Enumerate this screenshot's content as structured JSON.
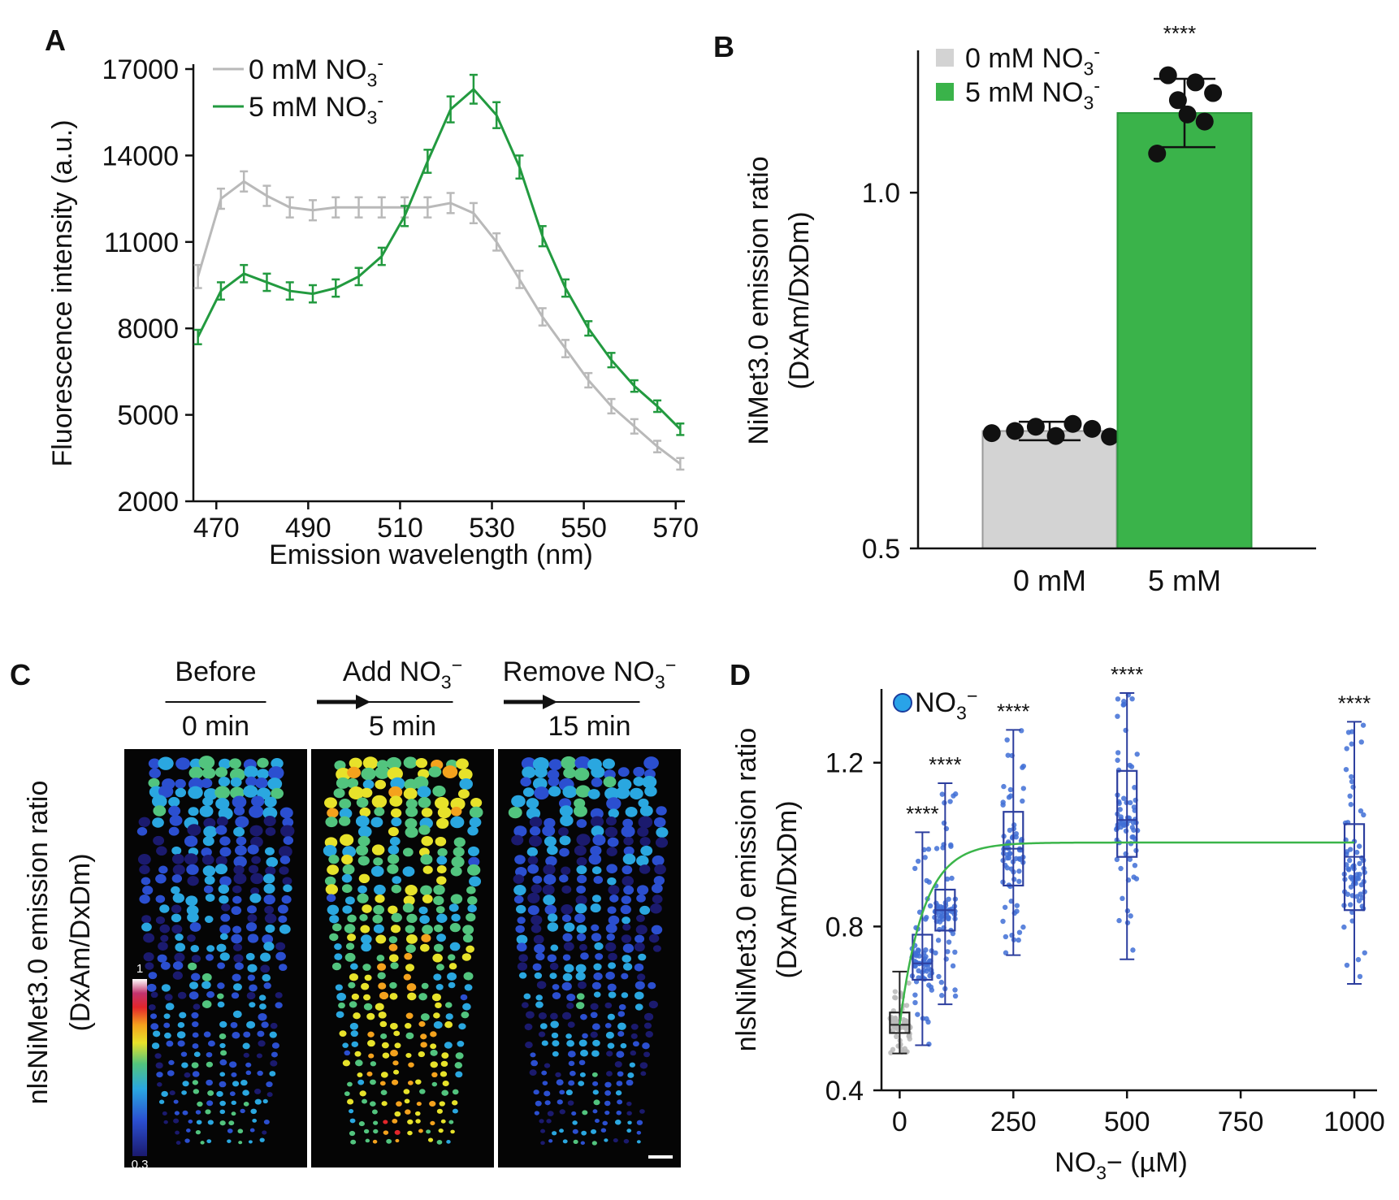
{
  "panels": {
    "A": {
      "letter": "A",
      "chart_data": {
        "type": "line",
        "xlabel": "Emission wavelength (nm)",
        "ylabel": "Fluorescence intensity (a.u.)",
        "xlim": [
          465,
          572
        ],
        "ylim": [
          2000,
          17000
        ],
        "xticks": [
          470,
          490,
          510,
          530,
          550,
          570
        ],
        "yticks": [
          2000,
          5000,
          8000,
          11000,
          14000,
          17000
        ],
        "legend_position": "top-left",
        "x": [
          466,
          471,
          476,
          481,
          486,
          491,
          496,
          501,
          506,
          511,
          516,
          521,
          526,
          531,
          536,
          541,
          546,
          551,
          556,
          561,
          566,
          571
        ],
        "series": [
          {
            "legend_main": "0 mM NO",
            "legend_sub": "3",
            "legend_sup": "-",
            "color": "#b9b9b9",
            "values": [
              9800,
              12500,
              13100,
              12600,
              12200,
              12100,
              12200,
              12200,
              12200,
              12200,
              12200,
              12350,
              12000,
              11000,
              9700,
              8400,
              7300,
              6200,
              5300,
              4600,
              3900,
              3300
            ],
            "errors": [
              400,
              350,
              350,
              350,
              350,
              350,
              350,
              350,
              350,
              350,
              350,
              350,
              350,
              300,
              300,
              300,
              300,
              250,
              250,
              250,
              200,
              200
            ]
          },
          {
            "legend_main": "5 mM NO",
            "legend_sub": "3",
            "legend_sup": "-",
            "color": "#229a3f",
            "values": [
              7700,
              9300,
              9900,
              9600,
              9300,
              9200,
              9400,
              9800,
              10500,
              11900,
              13800,
              15600,
              16300,
              15400,
              13600,
              11200,
              9400,
              8000,
              6900,
              6000,
              5300,
              4500
            ],
            "errors": [
              250,
              300,
              300,
              300,
              300,
              300,
              300,
              300,
              300,
              350,
              400,
              450,
              500,
              450,
              400,
              350,
              300,
              250,
              250,
              200,
              200,
              200
            ]
          }
        ]
      }
    },
    "B": {
      "letter": "B",
      "significance": "****",
      "chart_data": {
        "type": "bar",
        "ylabel": "NiMet3.0 emission ratio",
        "ylabel2": "(DxAm/DxDm)",
        "categories": [
          "0 mM",
          "5 mM"
        ],
        "values": [
          0.665,
          1.112
        ],
        "errors": [
          0.013,
          0.048
        ],
        "ylim": [
          0.5,
          1.2
        ],
        "yticks": [
          0.5,
          1.0
        ],
        "points": [
          [
            0.662,
            0.665,
            0.671,
            0.658,
            0.675,
            0.668,
            0.657
          ],
          [
            1.055,
            1.165,
            1.13,
            1.11,
            1.155,
            1.1,
            1.14
          ]
        ],
        "colors": [
          "#d3d3d3",
          "#3ab34a"
        ],
        "legend_position": "top-left",
        "legend": [
          {
            "main": "0 mM NO",
            "sub": "3",
            "sup": "-"
          },
          {
            "main": "5 mM NO",
            "sub": "3",
            "sup": "-"
          }
        ]
      }
    },
    "C": {
      "letter": "C",
      "ylabel": "nlsNiMet3.0 emission ratio",
      "ylabel2": "(DxAm/DxDm)",
      "steps": [
        {
          "label_main": "Before",
          "label_sub": "",
          "label_sup": "",
          "time": "0 min",
          "intensity": 0.35
        },
        {
          "label_main": "Add NO",
          "label_sub": "3",
          "label_sup": "−",
          "time": "5 min",
          "intensity": 0.75
        },
        {
          "label_main": "Remove NO",
          "label_sub": "3",
          "label_sup": "−",
          "time": "15 min",
          "intensity": 0.3
        }
      ],
      "colorbar_max": "1",
      "colorbar_min": "0.3"
    },
    "D": {
      "letter": "D",
      "legend_main": "NO",
      "legend_sub": "3",
      "legend_sup": "−",
      "chart_data": {
        "type": "box",
        "ylabel": "nlsNiMet3.0 emission ratio",
        "ylabel2": "(DxAm/DxDm)",
        "xlabel_main": "NO",
        "xlabel_sub": "3",
        "xlabel_rest": "− (µM)",
        "xlim": [
          -40,
          1050
        ],
        "ylim": [
          0.4,
          1.38
        ],
        "xticks": [
          0,
          250,
          500,
          750,
          1000
        ],
        "yticks": [
          0.4,
          0.8,
          1.2
        ],
        "boxes": [
          {
            "x": 0,
            "min": 0.49,
            "q1": 0.54,
            "median": 0.56,
            "q3": 0.59,
            "max": 0.69,
            "stars": ""
          },
          {
            "x": 50,
            "min": 0.51,
            "q1": 0.67,
            "median": 0.71,
            "q3": 0.78,
            "max": 1.03,
            "stars": "****"
          },
          {
            "x": 100,
            "min": 0.61,
            "q1": 0.79,
            "median": 0.84,
            "q3": 0.89,
            "max": 1.15,
            "stars": "****"
          },
          {
            "x": 250,
            "min": 0.73,
            "q1": 0.9,
            "median": 0.99,
            "q3": 1.08,
            "max": 1.28,
            "stars": "****"
          },
          {
            "x": 500,
            "min": 0.72,
            "q1": 0.97,
            "median": 1.06,
            "q3": 1.18,
            "max": 1.37,
            "stars": "****"
          },
          {
            "x": 1000,
            "min": 0.66,
            "q1": 0.84,
            "median": 0.97,
            "q3": 1.05,
            "max": 1.3,
            "stars": "****"
          }
        ],
        "fit": {
          "y0": 0.56,
          "ymax": 1.005,
          "k": 0.019
        },
        "fit_color": "#3bb54a",
        "box_color": "#2c3e9e"
      }
    }
  }
}
